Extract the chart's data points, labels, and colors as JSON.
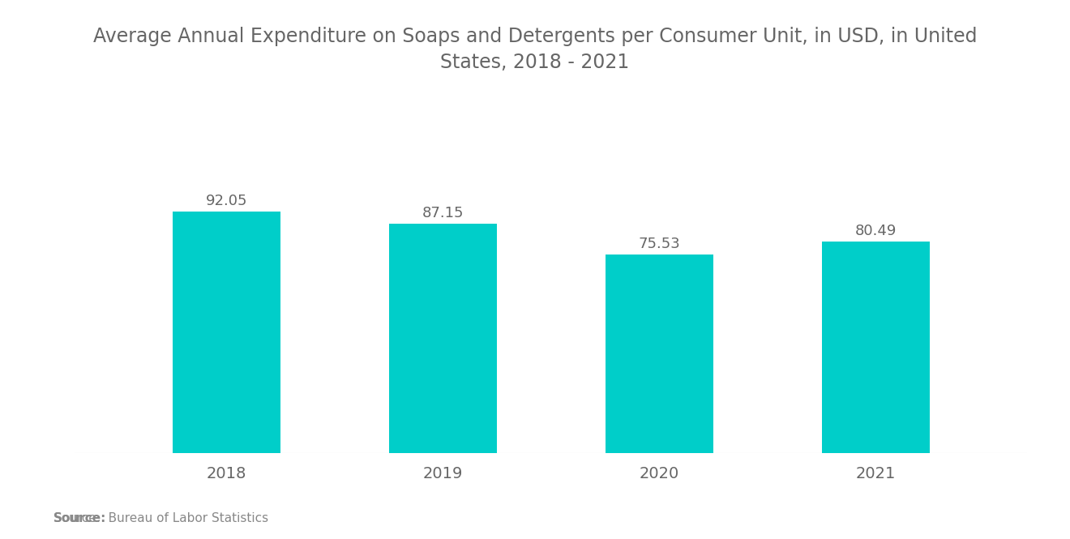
{
  "title": "Average Annual Expenditure on Soaps and Detergents per Consumer Unit, in USD, in United\nStates, 2018 - 2021",
  "categories": [
    "2018",
    "2019",
    "2020",
    "2021"
  ],
  "values": [
    92.05,
    87.15,
    75.53,
    80.49
  ],
  "bar_color": "#00CEC9",
  "background_color": "#ffffff",
  "title_fontsize": 17,
  "label_fontsize": 14,
  "value_fontsize": 13,
  "source_text": "Source:  Bureau of Labor Statistics",
  "source_bold": "Source:",
  "ylim": [
    0,
    115
  ],
  "bar_width": 0.5,
  "title_color": "#666666",
  "tick_color": "#666666",
  "value_color": "#666666"
}
